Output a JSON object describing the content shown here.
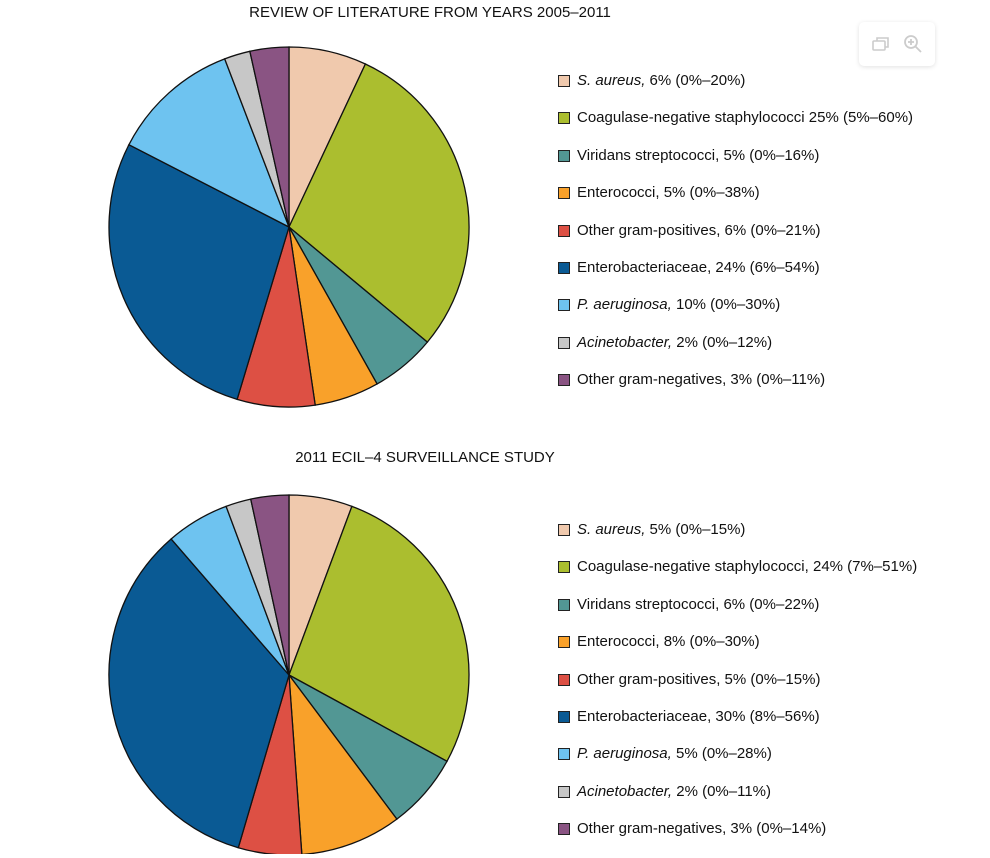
{
  "toolbar": {
    "icons": [
      "copy-icon",
      "zoom-in-icon"
    ]
  },
  "chart_data": [
    {
      "type": "pie",
      "title": "REVIEW OF LITERATURE FROM YEARS 2005–2011",
      "slices": [
        {
          "name": "S. aureus,",
          "italic": true,
          "value": 6,
          "rest": " 6% (0%–20%)",
          "color": "#f0c9ad"
        },
        {
          "name": "Coagulase-negative staphylococci",
          "italic": false,
          "value": 25,
          "rest": " 25% (5%–60%)",
          "color": "#abbe2f"
        },
        {
          "name": "Viridans streptococci,",
          "italic": false,
          "value": 5,
          "rest": " 5% (0%–16%)",
          "color": "#529794"
        },
        {
          "name": "Enterococci,",
          "italic": false,
          "value": 5,
          "rest": " 5% (0%–38%)",
          "color": "#f9a12a"
        },
        {
          "name": "Other gram-positives,",
          "italic": false,
          "value": 6,
          "rest": " 6% (0%–21%)",
          "color": "#dd5044"
        },
        {
          "name": "Enterobacteriaceae,",
          "italic": false,
          "value": 24,
          "rest": " 24% (6%–54%)",
          "color": "#0a5a94"
        },
        {
          "name": "P. aeruginosa,",
          "italic": true,
          "value": 10,
          "rest": " 10% (0%–30%)",
          "color": "#6ec3f0"
        },
        {
          "name": "Acinetobacter,",
          "italic": true,
          "value": 2,
          "rest": " 2% (0%–12%)",
          "color": "#c7c7c7"
        },
        {
          "name": "Other gram-negatives,",
          "italic": false,
          "value": 3,
          "rest": " 3% (0%–11%)",
          "color": "#8a5483"
        }
      ]
    },
    {
      "type": "pie",
      "title": "2011 ECIL–4 SURVEILLANCE STUDY",
      "slices": [
        {
          "name": "S. aureus,",
          "italic": true,
          "value": 5,
          "rest": " 5% (0%–15%)",
          "color": "#f0c9ad"
        },
        {
          "name": "Coagulase-negative staphylococci,",
          "italic": false,
          "value": 24,
          "rest": " 24% (7%–51%)",
          "color": "#abbe2f"
        },
        {
          "name": "Viridans streptococci,",
          "italic": false,
          "value": 6,
          "rest": " 6% (0%–22%)",
          "color": "#529794"
        },
        {
          "name": "Enterococci,",
          "italic": false,
          "value": 8,
          "rest": " 8% (0%–30%)",
          "color": "#f9a12a"
        },
        {
          "name": "Other gram-positives,",
          "italic": false,
          "value": 5,
          "rest": " 5% (0%–15%)",
          "color": "#dd5044"
        },
        {
          "name": "Enterobacteriaceae,",
          "italic": false,
          "value": 30,
          "rest": " 30% (8%–56%)",
          "color": "#0a5a94"
        },
        {
          "name": "P. aeruginosa,",
          "italic": true,
          "value": 5,
          "rest": " 5% (0%–28%)",
          "color": "#6ec3f0"
        },
        {
          "name": "Acinetobacter,",
          "italic": true,
          "value": 2,
          "rest": " 2% (0%–11%)",
          "color": "#c7c7c7"
        },
        {
          "name": "Other gram-negatives,",
          "italic": false,
          "value": 3,
          "rest": " 3% (0%–14%)",
          "color": "#8a5483"
        }
      ]
    }
  ]
}
